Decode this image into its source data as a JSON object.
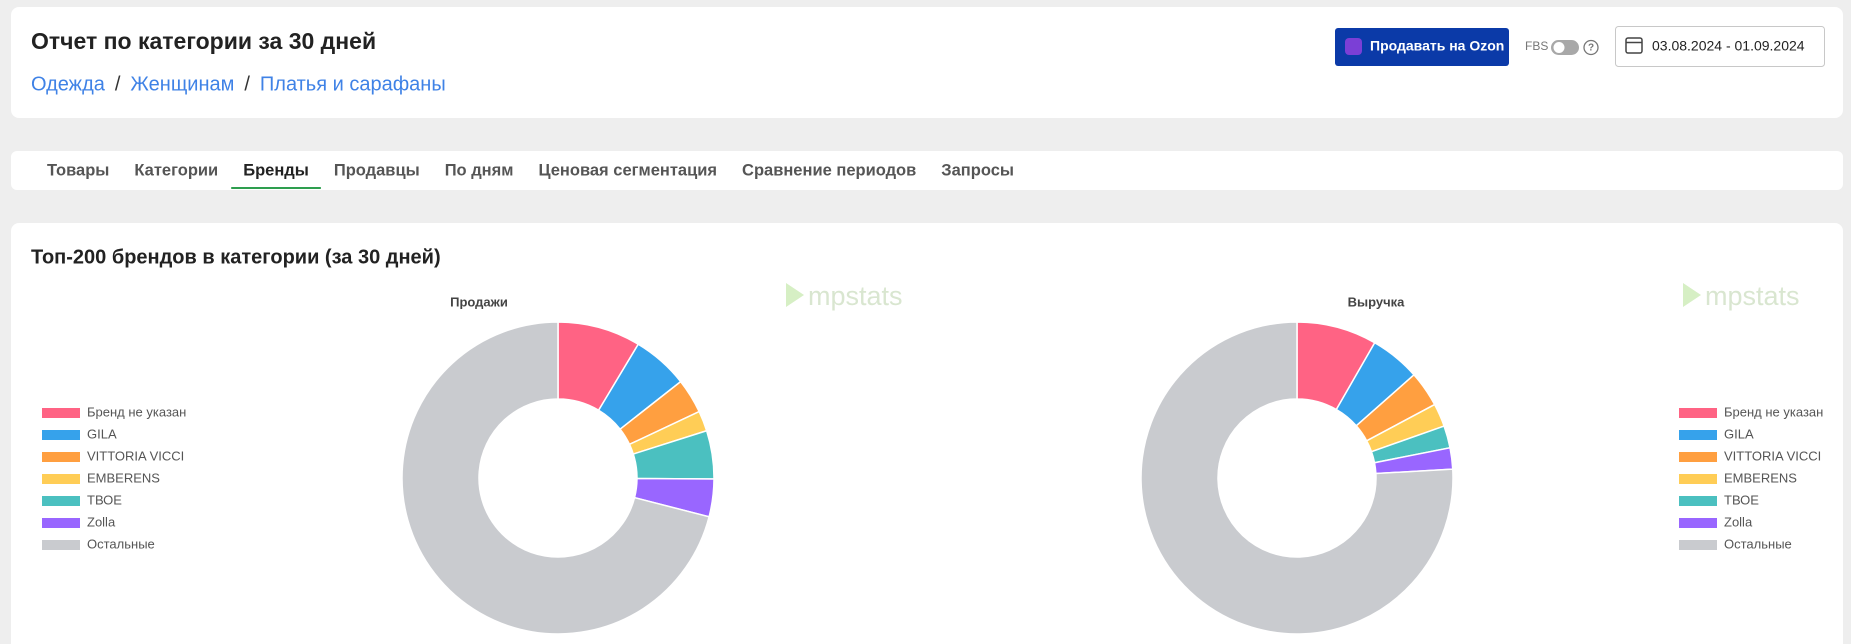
{
  "header": {
    "title": "Отчет по категории за 30 дней",
    "breadcrumbs": [
      "Одежда",
      "Женщинам",
      "Платья и сарафаны"
    ],
    "separator": "/",
    "button": "Продавать на Ozon",
    "fbs": "FBS",
    "help": "?",
    "date_range": "03.08.2024 - 01.09.2024"
  },
  "tabs": {
    "items": [
      "Товары",
      "Категории",
      "Бренды",
      "Продавцы",
      "По дням",
      "Ценовая сегментация",
      "Сравнение периодов",
      "Запросы"
    ],
    "active": 2
  },
  "section": {
    "title": "Топ-200 брендов в категории (за 30 дней)",
    "watermark": "mpstats"
  },
  "chart_data": [
    {
      "type": "doughnut",
      "title": "Продажи",
      "categories": [
        "Бренд не указан",
        "GILA",
        "VITTORIA VICCI",
        "EMBERENS",
        "ТВОЕ",
        "Zolla",
        "Остальные"
      ],
      "values": [
        8.6,
        5.8,
        3.6,
        2.1,
        5.0,
        3.9,
        71.0
      ],
      "colors": [
        "#ff6384",
        "#36a2eb",
        "#ff9f40",
        "#ffcd56",
        "#4bc0c0",
        "#9966ff",
        "#c9cbcf"
      ],
      "legend": "left"
    },
    {
      "type": "doughnut",
      "title": "Выручка",
      "categories": [
        "Бренд не указан",
        "GILA",
        "VITTORIA VICCI",
        "EMBERENS",
        "ТВОЕ",
        "Zolla",
        "Остальные"
      ],
      "values": [
        8.3,
        5.2,
        3.7,
        2.4,
        2.3,
        2.2,
        75.9
      ],
      "colors": [
        "#ff6384",
        "#36a2eb",
        "#ff9f40",
        "#ffcd56",
        "#4bc0c0",
        "#9966ff",
        "#c9cbcf"
      ],
      "legend": "right"
    }
  ]
}
